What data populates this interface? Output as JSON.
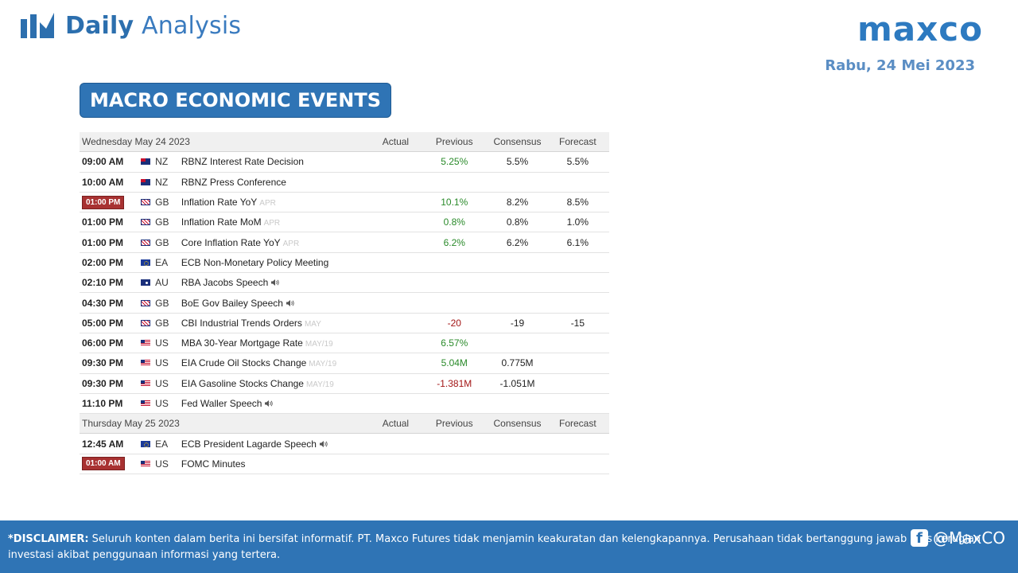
{
  "header": {
    "logo_bold": "Daily",
    "logo_light": "Analysis",
    "brand": "maxco",
    "date": "Rabu, 24 Mei 2023"
  },
  "section_title": "MACRO ECONOMIC EVENTS",
  "calendar": {
    "columns": {
      "actual": "Actual",
      "previous": "Previous",
      "consensus": "Consensus",
      "forecast": "Forecast"
    },
    "days": [
      {
        "label": "Wednesday May 24 2023",
        "events": [
          {
            "time": "09:00 AM",
            "highlight": false,
            "flag": "nz",
            "country": "NZ",
            "event": "RBNZ Interest Rate Decision",
            "period": "",
            "speech": false,
            "actual": "",
            "previous": "5.25%",
            "previous_tone": "pos",
            "consensus": "5.5%",
            "forecast": "5.5%"
          },
          {
            "time": "10:00 AM",
            "highlight": false,
            "flag": "nz",
            "country": "NZ",
            "event": "RBNZ Press Conference",
            "period": "",
            "speech": false,
            "actual": "",
            "previous": "",
            "previous_tone": "",
            "consensus": "",
            "forecast": ""
          },
          {
            "time": "01:00 PM",
            "highlight": true,
            "flag": "gb",
            "country": "GB",
            "event": "Inflation Rate YoY",
            "period": "APR",
            "speech": false,
            "actual": "",
            "previous": "10.1%",
            "previous_tone": "pos",
            "consensus": "8.2%",
            "forecast": "8.5%"
          },
          {
            "time": "01:00 PM",
            "highlight": false,
            "flag": "gb",
            "country": "GB",
            "event": "Inflation Rate MoM",
            "period": "APR",
            "speech": false,
            "actual": "",
            "previous": "0.8%",
            "previous_tone": "pos",
            "consensus": "0.8%",
            "forecast": "1.0%"
          },
          {
            "time": "01:00 PM",
            "highlight": false,
            "flag": "gb",
            "country": "GB",
            "event": "Core Inflation Rate YoY",
            "period": "APR",
            "speech": false,
            "actual": "",
            "previous": "6.2%",
            "previous_tone": "pos",
            "consensus": "6.2%",
            "forecast": "6.1%"
          },
          {
            "time": "02:00 PM",
            "highlight": false,
            "flag": "eu",
            "country": "EA",
            "event": "ECB Non-Monetary Policy Meeting",
            "period": "",
            "speech": false,
            "actual": "",
            "previous": "",
            "previous_tone": "",
            "consensus": "",
            "forecast": ""
          },
          {
            "time": "02:10 PM",
            "highlight": false,
            "flag": "au",
            "country": "AU",
            "event": "RBA Jacobs Speech",
            "period": "",
            "speech": true,
            "actual": "",
            "previous": "",
            "previous_tone": "",
            "consensus": "",
            "forecast": ""
          },
          {
            "time": "04:30 PM",
            "highlight": false,
            "flag": "gb",
            "country": "GB",
            "event": "BoE Gov Bailey Speech",
            "period": "",
            "speech": true,
            "actual": "",
            "previous": "",
            "previous_tone": "",
            "consensus": "",
            "forecast": ""
          },
          {
            "time": "05:00 PM",
            "highlight": false,
            "flag": "gb",
            "country": "GB",
            "event": "CBI Industrial Trends Orders",
            "period": "MAY",
            "speech": false,
            "actual": "",
            "previous": "-20",
            "previous_tone": "neg",
            "consensus": "-19",
            "forecast": "-15"
          },
          {
            "time": "06:00 PM",
            "highlight": false,
            "flag": "us",
            "country": "US",
            "event": "MBA 30-Year Mortgage Rate",
            "period": "MAY/19",
            "speech": false,
            "actual": "",
            "previous": "6.57%",
            "previous_tone": "pos",
            "consensus": "",
            "forecast": ""
          },
          {
            "time": "09:30 PM",
            "highlight": false,
            "flag": "us",
            "country": "US",
            "event": "EIA Crude Oil Stocks Change",
            "period": "MAY/19",
            "speech": false,
            "actual": "",
            "previous": "5.04M",
            "previous_tone": "pos",
            "consensus": "0.775M",
            "forecast": ""
          },
          {
            "time": "09:30 PM",
            "highlight": false,
            "flag": "us",
            "country": "US",
            "event": "EIA Gasoline Stocks Change",
            "period": "MAY/19",
            "speech": false,
            "actual": "",
            "previous": "-1.381M",
            "previous_tone": "neg",
            "consensus": "-1.051M",
            "forecast": ""
          },
          {
            "time": "11:10 PM",
            "highlight": false,
            "flag": "us",
            "country": "US",
            "event": "Fed Waller Speech",
            "period": "",
            "speech": true,
            "actual": "",
            "previous": "",
            "previous_tone": "",
            "consensus": "",
            "forecast": ""
          }
        ]
      },
      {
        "label": "Thursday May 25 2023",
        "events": [
          {
            "time": "12:45 AM",
            "highlight": false,
            "flag": "eu",
            "country": "EA",
            "event": "ECB President Lagarde Speech",
            "period": "",
            "speech": true,
            "actual": "",
            "previous": "",
            "previous_tone": "",
            "consensus": "",
            "forecast": ""
          },
          {
            "time": "01:00 AM",
            "highlight": true,
            "flag": "us",
            "country": "US",
            "event": "FOMC Minutes",
            "period": "",
            "speech": false,
            "actual": "",
            "previous": "",
            "previous_tone": "",
            "consensus": "",
            "forecast": ""
          }
        ]
      }
    ]
  },
  "footer": {
    "disclaimer_label": "*DISCLAIMER:",
    "disclaimer_text": " Seluruh konten dalam berita ini bersifat informatif. PT. Maxco Futures tidak menjamin keakuratan dan kelengkapannya. Perusahaan tidak bertanggung jawab atas kerugian investasi akibat penggunaan informasi yang tertera.",
    "social_handle": "@MaxCO"
  },
  "colors": {
    "brand_blue": "#2f74b5",
    "positive": "#2a8a2a",
    "negative": "#a31515",
    "highlight_badge": "#a83232"
  }
}
